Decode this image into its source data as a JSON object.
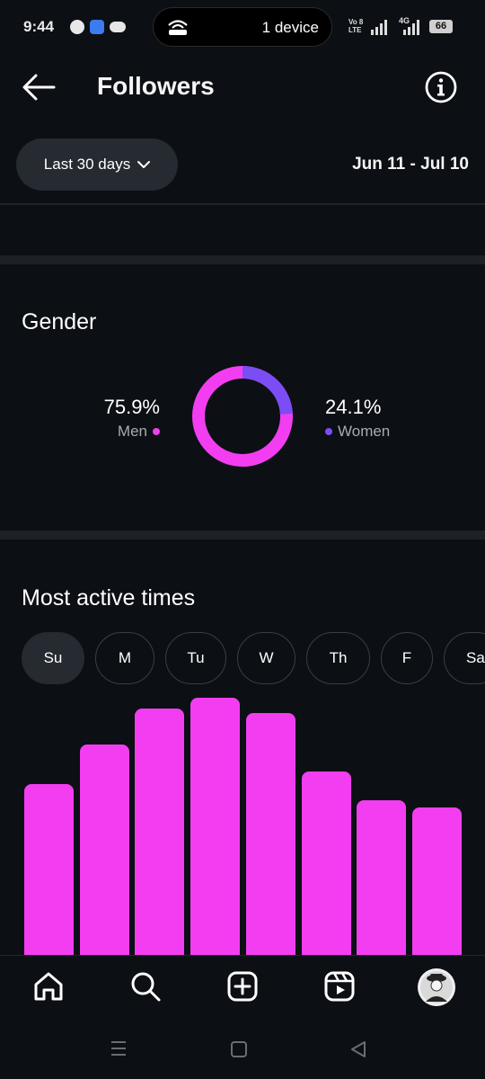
{
  "status_bar": {
    "time": "9:44",
    "pill_text": "1 device",
    "network_label_top": "Vo 8",
    "network_label_bottom": "LTE",
    "network_4g": "4G",
    "battery": "66"
  },
  "header": {
    "title": "Followers"
  },
  "filter": {
    "range_label": "Last 30 days",
    "date_range": "Jun 11 - Jul 10"
  },
  "gender": {
    "title": "Gender",
    "men_percent": "75.9%",
    "men_label": "Men",
    "women_percent": "24.1%",
    "women_label": "Women",
    "men_share": 0.759,
    "women_share": 0.241,
    "men_color": "#f23ef0",
    "women_color": "#7b4df5"
  },
  "active_times": {
    "title": "Most active times",
    "days": [
      {
        "label": "Su",
        "active": true
      },
      {
        "label": "M",
        "active": false
      },
      {
        "label": "Tu",
        "active": false
      },
      {
        "label": "W",
        "active": false
      },
      {
        "label": "Th",
        "active": false
      },
      {
        "label": "F",
        "active": false
      },
      {
        "label": "Sa",
        "active": false
      }
    ],
    "bar_color": "#f23ef0"
  },
  "chart_data": {
    "type": "bar",
    "categories": [
      "",
      "",
      "",
      "",
      "",
      "",
      "",
      ""
    ],
    "values": [
      65,
      80,
      94,
      98,
      92,
      70,
      59,
      56
    ],
    "ylim": [
      0,
      100
    ],
    "title": "",
    "xlabel": "",
    "ylabel": ""
  },
  "bottom_nav": {
    "items": [
      "home-icon",
      "search-icon",
      "create-icon",
      "reels-icon",
      "profile-avatar"
    ]
  }
}
